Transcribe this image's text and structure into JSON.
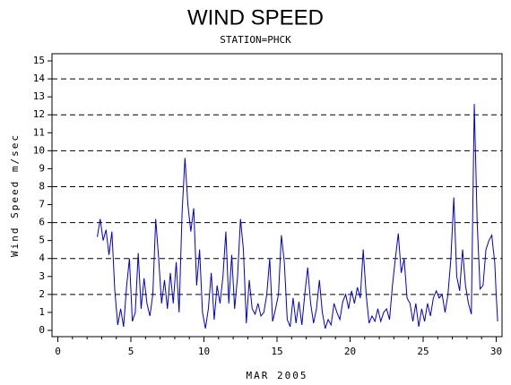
{
  "chart_data": {
    "type": "line",
    "title": "WIND SPEED",
    "subtitle": "STATION=PHCK",
    "y_label": "Wind Speed m/sec",
    "x_label": "MAR 2005",
    "xlim": [
      -0.4,
      30.4
    ],
    "xticks": [
      0,
      5,
      10,
      15,
      20,
      25,
      30
    ],
    "ylim": [
      -0.35,
      15.4
    ],
    "yticks": [
      0,
      1,
      2,
      3,
      4,
      5,
      6,
      7,
      8,
      9,
      10,
      11,
      12,
      13,
      14,
      15
    ],
    "grid_lines": [
      2,
      4,
      6,
      8,
      10,
      12,
      14
    ],
    "x": [
      2.7,
      2.9,
      3.1,
      3.3,
      3.5,
      3.7,
      3.9,
      4.1,
      4.3,
      4.5,
      4.7,
      4.9,
      5.1,
      5.3,
      5.5,
      5.7,
      5.9,
      6.1,
      6.3,
      6.5,
      6.7,
      6.9,
      7.1,
      7.3,
      7.5,
      7.7,
      7.9,
      8.1,
      8.3,
      8.5,
      8.7,
      8.9,
      9.1,
      9.3,
      9.5,
      9.7,
      9.9,
      10.1,
      10.3,
      10.5,
      10.7,
      10.9,
      11.1,
      11.3,
      11.5,
      11.7,
      11.9,
      12.1,
      12.3,
      12.5,
      12.7,
      12.9,
      13.1,
      13.3,
      13.5,
      13.7,
      13.9,
      14.1,
      14.3,
      14.5,
      14.7,
      14.9,
      15.1,
      15.3,
      15.5,
      15.7,
      15.9,
      16.1,
      16.3,
      16.5,
      16.7,
      16.9,
      17.1,
      17.3,
      17.5,
      17.7,
      17.9,
      18.1,
      18.3,
      18.5,
      18.7,
      18.9,
      19.1,
      19.3,
      19.5,
      19.7,
      19.9,
      20.1,
      20.3,
      20.5,
      20.7,
      20.9,
      21.1,
      21.3,
      21.5,
      21.7,
      21.9,
      22.1,
      22.3,
      22.5,
      22.7,
      22.9,
      23.1,
      23.3,
      23.5,
      23.7,
      23.9,
      24.1,
      24.3,
      24.5,
      24.7,
      24.9,
      25.1,
      25.3,
      25.5,
      25.7,
      25.9,
      26.1,
      26.3,
      26.5,
      26.7,
      26.9,
      27.1,
      27.3,
      27.5,
      27.7,
      27.9,
      28.1,
      28.3,
      28.5,
      28.7,
      28.9,
      29.1,
      29.3,
      29.5,
      29.7,
      29.8,
      29.9,
      30.0,
      30.1
    ],
    "series": [
      {
        "color": "#0000cc",
        "values": [
          5.2,
          6.2,
          5.0,
          5.6,
          4.2,
          5.5,
          2.2,
          0.3,
          1.2,
          0.2,
          2.4,
          4.0,
          0.5,
          1.0,
          4.3,
          1.2,
          2.9,
          1.5,
          0.8,
          2.0,
          6.2,
          4.0,
          1.5,
          2.8,
          1.2,
          3.2,
          1.5,
          3.8,
          1.0,
          6.5,
          9.6,
          7.0,
          5.5,
          6.8,
          2.5,
          4.5,
          1.0,
          0.1,
          1.2,
          3.2,
          0.6,
          2.5,
          1.5,
          3.0,
          5.5,
          1.5,
          4.2,
          1.2,
          3.0,
          6.2,
          4.5,
          0.4,
          2.8,
          1.2,
          0.9,
          1.5,
          0.8,
          1.0,
          2.0,
          4.0,
          0.5,
          1.2,
          2.0,
          5.3,
          3.8,
          0.6,
          0.2,
          1.8,
          0.4,
          1.6,
          0.3,
          2.0,
          3.5,
          1.5,
          0.4,
          1.2,
          2.8,
          1.0,
          0.1,
          0.6,
          0.3,
          1.5,
          1.0,
          0.6,
          1.6,
          2.0,
          1.2,
          2.2,
          1.5,
          2.4,
          1.8,
          4.5,
          2.0,
          0.4,
          0.8,
          0.5,
          1.2,
          0.5,
          1.0,
          1.2,
          0.6,
          2.5,
          4.0,
          5.4,
          3.2,
          4.0,
          1.8,
          1.5,
          0.5,
          1.5,
          0.2,
          1.2,
          0.5,
          1.5,
          0.8,
          1.8,
          2.2,
          1.8,
          2.0,
          1.0,
          2.0,
          4.0,
          7.4,
          3.0,
          2.2,
          4.5,
          2.5,
          1.5,
          0.9,
          12.6,
          6.0,
          2.3,
          2.5,
          4.5,
          5.0,
          5.3,
          4.5,
          3.8,
          2.0,
          0.5
        ]
      }
    ]
  }
}
